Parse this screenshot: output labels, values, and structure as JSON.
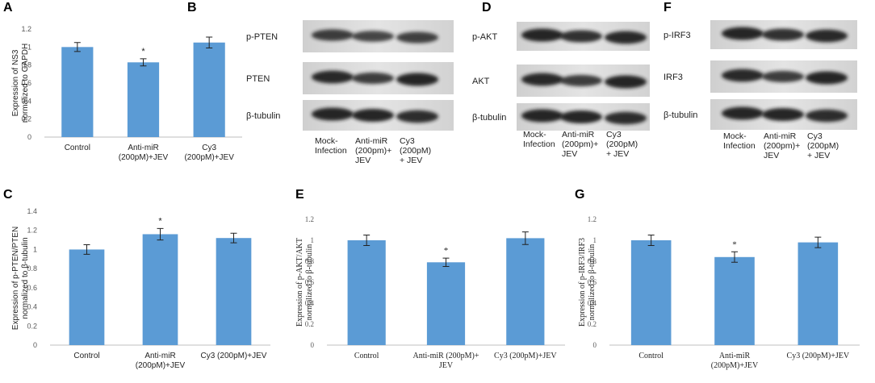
{
  "chart_data": [
    {
      "type": "bar",
      "panel": "A",
      "ylabel": "Expression of NS3\nnormalized to GAPDH",
      "categories": [
        "Control",
        "Anti-miR\n(200pM)+JEV",
        "Cy3\n(200pM)+JEV"
      ],
      "values": [
        1.0,
        0.83,
        1.05
      ],
      "errors": [
        0.05,
        0.04,
        0.06
      ],
      "markers": [
        null,
        "*",
        null
      ],
      "color": "#5b9bd5",
      "ylim": [
        0,
        1.2
      ],
      "yticks": [
        0,
        0.2,
        0.4,
        0.6,
        0.8,
        1,
        1.2
      ]
    },
    {
      "type": "bar",
      "panel": "C",
      "ylabel": "Expression of p-PTEN/PTEN\nnormalized to β-tubulin",
      "categories": [
        "Control",
        "Anti-miR\n(200pM)+JEV",
        "Cy3 (200pM)+JEV"
      ],
      "values": [
        1.0,
        1.16,
        1.12
      ],
      "errors": [
        0.05,
        0.06,
        0.05
      ],
      "markers": [
        null,
        "*",
        null
      ],
      "color": "#5b9bd5",
      "ylim": [
        0,
        1.4
      ],
      "yticks": [
        0,
        0.2,
        0.4,
        0.6,
        0.8,
        1,
        1.2,
        1.4
      ]
    },
    {
      "type": "bar",
      "panel": "E",
      "ylabel": "Expression of p-AKT/AKT\nnormalized to β-tubulin",
      "categories": [
        "Control",
        "Anti-miR (200pM)+\nJEV",
        "Cy3 (200pM)+JEV"
      ],
      "values": [
        1.0,
        0.79,
        1.02
      ],
      "errors": [
        0.05,
        0.04,
        0.06
      ],
      "markers": [
        null,
        "*",
        null
      ],
      "color": "#5b9bd5",
      "ylim": [
        0,
        1.2
      ],
      "yticks": [
        0,
        0.2,
        0.4,
        0.6,
        0.8,
        1,
        1.2
      ]
    },
    {
      "type": "bar",
      "panel": "G",
      "ylabel": "Expression of p-IRF3/IRF3\nnormalized to β-tubulin",
      "categories": [
        "Control",
        "Anti-miR\n(200pM)+JEV",
        "Cy3 (200pM)+JEV"
      ],
      "values": [
        1.0,
        0.84,
        0.98
      ],
      "errors": [
        0.05,
        0.05,
        0.05
      ],
      "markers": [
        null,
        "*",
        null
      ],
      "color": "#5b9bd5",
      "ylim": [
        0,
        1.2
      ],
      "yticks": [
        0,
        0.2,
        0.4,
        0.6,
        0.8,
        1,
        1.2
      ]
    }
  ],
  "blots": [
    {
      "panel": "B",
      "rows": [
        "p-PTEN",
        "PTEN",
        "β-tubulin"
      ],
      "lanes": [
        "Mock-\nInfection",
        "Anti-miR\n(200pm)+\nJEV",
        "Cy3\n(200pM)\n+ JEV"
      ]
    },
    {
      "panel": "D",
      "rows": [
        "p-AKT",
        "AKT",
        "β-tubulin"
      ],
      "lanes": [
        "Mock-\nInfection",
        "Anti-miR\n(200pm)+\nJEV",
        "Cy3\n(200pM)\n+ JEV"
      ]
    },
    {
      "panel": "F",
      "rows": [
        "p-IRF3",
        "IRF3",
        "β-tubulin"
      ],
      "lanes": [
        "Mock-\nInfection",
        "Anti-miR\n(200pm)+\nJEV",
        "Cy3\n(200pM)\n+ JEV"
      ]
    }
  ]
}
